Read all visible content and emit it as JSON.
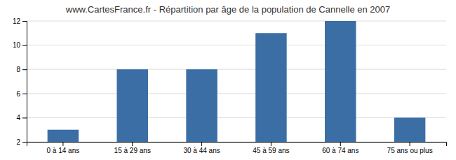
{
  "chart_data": {
    "type": "bar",
    "title": "www.CartesFrance.fr - Répartition par âge de la population de Cannelle en 2007",
    "categories": [
      "0 à 14 ans",
      "15 à 29 ans",
      "30 à 44 ans",
      "45 à 59 ans",
      "60 à 74 ans",
      "75 ans ou plus"
    ],
    "values": [
      3,
      8,
      8,
      11,
      12,
      4
    ],
    "color": "#3a6ea5",
    "ylim": [
      2,
      12
    ],
    "yticks": [
      2,
      4,
      6,
      8,
      10,
      12
    ],
    "grid": true
  }
}
